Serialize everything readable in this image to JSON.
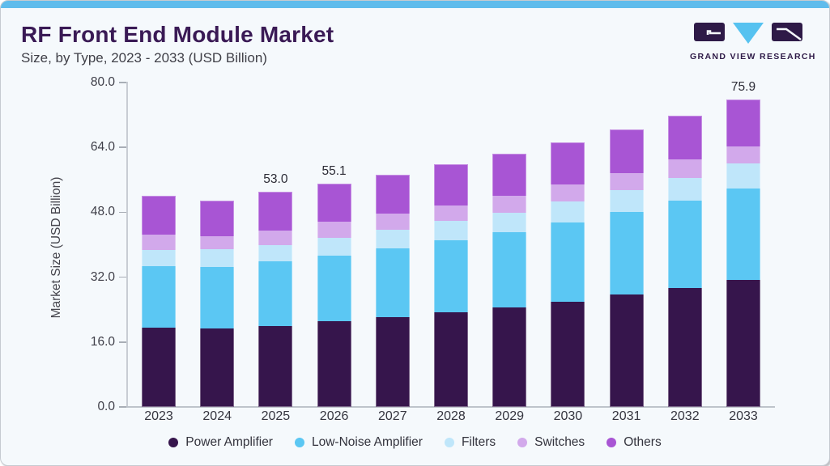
{
  "page": {
    "title": "RF Front End Module Market",
    "subtitle": "Size, by Type, 2023 - 2033 (USD Billion)"
  },
  "logo": {
    "text": "GRAND VIEW RESEARCH",
    "mark_dark": "#2E1A47",
    "mark_blue": "#56C2F0"
  },
  "theme": {
    "accent_bar": "#5FBCEC",
    "card_bg": "#F5F9FC",
    "title_color": "#3A1A55",
    "axis_line": "#C8CDD4",
    "tick_text": "#3E3E48"
  },
  "chart_data": {
    "type": "bar",
    "stacked": true,
    "title": "RF Front End Module Market Size, by Type, 2023 - 2033 (USD Billion)",
    "xlabel": "",
    "ylabel": "Market Size (USD Billion)",
    "ylim": [
      0,
      80
    ],
    "yticks": [
      "0.0",
      "16.0",
      "32.0",
      "48.0",
      "64.0",
      "80.0"
    ],
    "grid": false,
    "legend_position": "bottom",
    "categories": [
      "2023",
      "2024",
      "2025",
      "2026",
      "2027",
      "2028",
      "2029",
      "2030",
      "2031",
      "2032",
      "2033"
    ],
    "series": [
      {
        "name": "Power Amplifier",
        "color": "#36154C",
        "values": [
          19.5,
          19.3,
          19.9,
          21.2,
          22.2,
          23.3,
          24.6,
          25.9,
          27.7,
          29.3,
          31.3
        ]
      },
      {
        "name": "Low-Noise Amplifier",
        "color": "#5BC7F3",
        "values": [
          15.2,
          15.2,
          16.0,
          16.1,
          16.9,
          17.8,
          18.5,
          19.6,
          20.3,
          21.5,
          22.6
        ]
      },
      {
        "name": "Filters",
        "color": "#BFE6FA",
        "values": [
          4.0,
          4.4,
          4.0,
          4.3,
          4.6,
          4.8,
          4.8,
          5.1,
          5.5,
          5.6,
          6.1
        ]
      },
      {
        "name": "Switches",
        "color": "#D2A9EB",
        "values": [
          3.8,
          3.2,
          3.6,
          4.1,
          3.9,
          3.8,
          4.1,
          4.3,
          4.2,
          4.7,
          4.3
        ]
      },
      {
        "name": "Others",
        "color": "#A855D4",
        "values": [
          9.5,
          8.8,
          9.5,
          9.4,
          9.6,
          10.2,
          10.4,
          10.3,
          10.8,
          10.8,
          11.6
        ]
      }
    ],
    "totals": [
      52.0,
      50.9,
      53.0,
      55.1,
      57.2,
      59.9,
      62.4,
      65.2,
      68.5,
      71.9,
      75.9
    ],
    "value_labels": {
      "2025": "53.0",
      "2026": "55.1",
      "2033": "75.9"
    }
  }
}
